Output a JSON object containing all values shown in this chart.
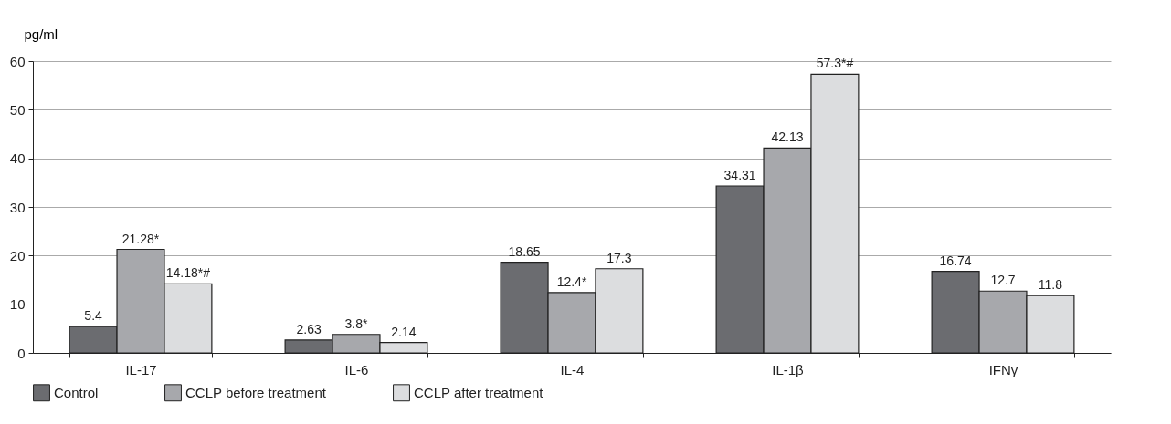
{
  "chart_data": {
    "type": "bar",
    "ylabel": "pg/ml",
    "categories": [
      "IL-17",
      "IL-6",
      "IL-4",
      "IL-1β",
      "IFNγ"
    ],
    "series": [
      {
        "name": "Control",
        "color": "#6b6c70",
        "values": [
          5.4,
          2.63,
          18.65,
          34.31,
          16.74
        ],
        "value_labels": [
          "5.4",
          "2.63",
          "18.65",
          "34.31",
          "16.74"
        ]
      },
      {
        "name": "CCLP before treatment",
        "color": "#a7a8ac",
        "values": [
          21.28,
          3.8,
          12.4,
          42.13,
          12.7
        ],
        "value_labels": [
          "21.28*",
          "3.8*",
          "12.4*",
          "42.13",
          "12.7"
        ]
      },
      {
        "name": "CCLP after treatment",
        "color": "#dcdddf",
        "values": [
          14.18,
          2.14,
          17.3,
          57.3,
          11.8
        ],
        "value_labels": [
          "14.18*#",
          "2.14",
          "17.3",
          "57.3*#",
          "11.8"
        ]
      }
    ],
    "ylim": [
      0,
      60
    ],
    "yticks": [
      0,
      10,
      20,
      30,
      40,
      50,
      60
    ],
    "grid": "y",
    "legend": "bottom"
  }
}
